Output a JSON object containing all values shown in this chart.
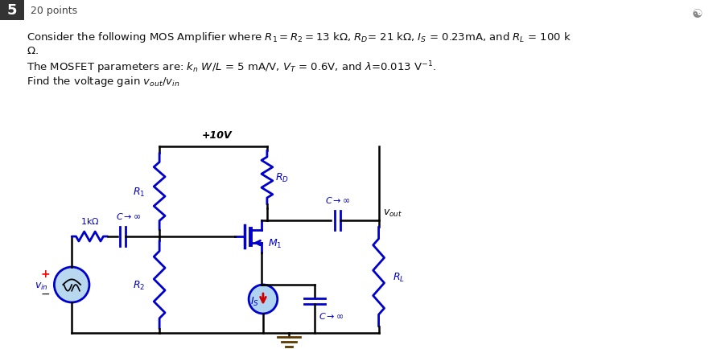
{
  "bg_color": "#ffffff",
  "wire_color": "#000000",
  "component_color": "#0000cc",
  "is_arrow_color": "#cc0000",
  "ground_color": "#5a3a00",
  "pin_box_color": "#333333",
  "component_lw": 2.0,
  "wire_lw": 1.8,
  "text_color": "#111111",
  "vout_text_color": "#000000"
}
